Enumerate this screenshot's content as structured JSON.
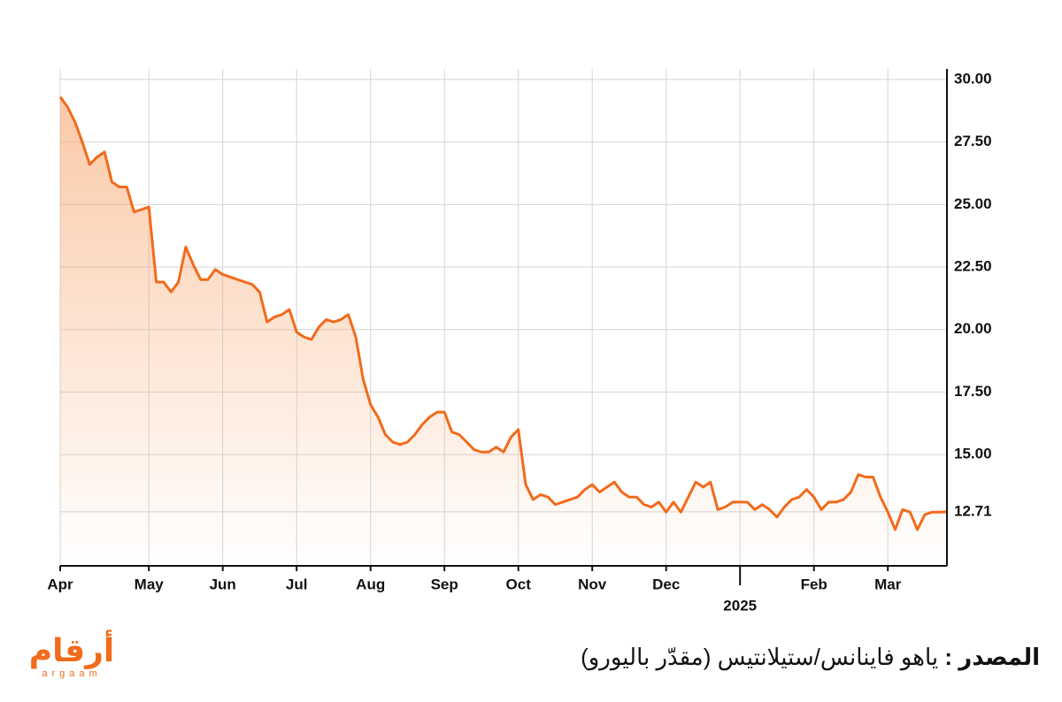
{
  "chart_data": {
    "type": "line",
    "categories": [
      "Apr",
      null,
      null,
      null,
      null,
      null,
      null,
      null,
      null,
      null,
      null,
      null,
      "May",
      null,
      null,
      null,
      null,
      null,
      null,
      null,
      null,
      null,
      "Jun",
      null,
      null,
      null,
      null,
      null,
      null,
      null,
      null,
      null,
      "Jul",
      null,
      null,
      null,
      null,
      null,
      null,
      null,
      null,
      null,
      "Aug",
      null,
      null,
      null,
      null,
      null,
      null,
      null,
      null,
      null,
      "Sep",
      null,
      null,
      null,
      null,
      null,
      null,
      null,
      null,
      null,
      "Oct",
      null,
      null,
      null,
      null,
      null,
      null,
      null,
      null,
      null,
      "Nov",
      null,
      null,
      null,
      null,
      null,
      null,
      null,
      null,
      null,
      "Dec",
      null,
      null,
      null,
      null,
      null,
      null,
      null,
      null,
      null,
      "2025",
      null,
      null,
      null,
      null,
      null,
      null,
      null,
      null,
      null,
      "Feb",
      null,
      null,
      null,
      null,
      null,
      null,
      null,
      null,
      null,
      "Mar",
      null,
      null,
      null,
      null,
      null,
      null,
      null,
      null
    ],
    "values": [
      29.3,
      28.9,
      28.3,
      27.5,
      26.6,
      26.9,
      27.1,
      25.9,
      25.7,
      25.7,
      24.7,
      24.8,
      24.9,
      21.9,
      21.9,
      21.5,
      21.9,
      23.3,
      22.6,
      22.0,
      22.0,
      22.4,
      22.2,
      22.1,
      22.0,
      21.9,
      21.8,
      21.5,
      20.3,
      20.5,
      20.6,
      20.8,
      19.9,
      19.7,
      19.6,
      20.1,
      20.4,
      20.3,
      20.4,
      20.6,
      19.7,
      18.0,
      17.0,
      16.5,
      15.8,
      15.5,
      15.4,
      15.5,
      15.8,
      16.2,
      16.5,
      16.7,
      16.7,
      15.9,
      15.8,
      15.5,
      15.2,
      15.1,
      15.1,
      15.3,
      15.1,
      15.7,
      16.0,
      13.8,
      13.2,
      13.4,
      13.3,
      13.0,
      13.1,
      13.2,
      13.3,
      13.6,
      13.8,
      13.5,
      13.7,
      13.9,
      13.5,
      13.3,
      13.3,
      13.0,
      12.9,
      13.1,
      12.7,
      13.1,
      12.7,
      13.3,
      13.9,
      13.7,
      13.9,
      12.8,
      12.9,
      13.1,
      13.1,
      13.1,
      12.8,
      13.0,
      12.8,
      12.5,
      12.9,
      13.2,
      13.3,
      13.6,
      13.3,
      12.8,
      13.1,
      13.1,
      13.2,
      13.5,
      14.2,
      14.1,
      14.1,
      13.3,
      12.7,
      12.0,
      12.8,
      12.7,
      12.0,
      12.6,
      12.7,
      12.7,
      12.71
    ],
    "color": "#f26a1b",
    "ylim": [
      10.55,
      30.35
    ],
    "yticks": [
      12.71,
      {
        "value": 15,
        "label": "15.00"
      },
      {
        "value": 17.5,
        "label": "17.50"
      },
      {
        "value": 20,
        "label": "20.00"
      },
      {
        "value": 22.5,
        "label": "22.50"
      },
      {
        "value": 25,
        "label": "25.00"
      },
      {
        "value": 27.5,
        "label": "27.50"
      },
      {
        "value": 30,
        "label": "30.00"
      }
    ],
    "grid": true
  },
  "footer": {
    "source_label": "المصدر :",
    "source_text": "ياهو فاينانس/ستيلانتيس (مقدّر باليورو)",
    "logo": "أرقام",
    "logo_sub": "argaam"
  }
}
